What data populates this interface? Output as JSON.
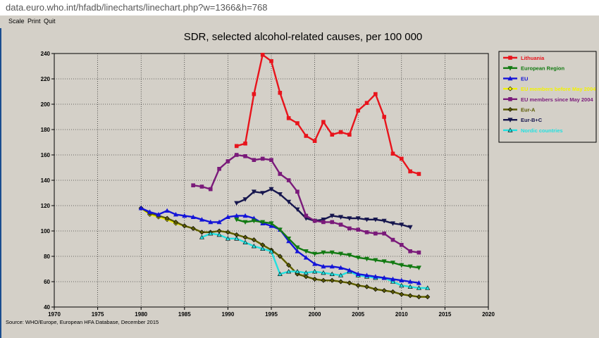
{
  "browser": {
    "url": "data.euro.who.int/hfadb/linecharts/linechart.php?w=1366&h=768"
  },
  "menu": {
    "items": [
      "Scale",
      "Print",
      "Quit"
    ]
  },
  "source": "Source: WHO/Europe, European HFA Database, December 2015",
  "chart_data": {
    "type": "line",
    "title": "SDR, selected alcohol-related causes, per 100 000",
    "xlim": [
      1970,
      2020
    ],
    "ylim": [
      40,
      240
    ],
    "xticks": [
      1970,
      1975,
      1980,
      1985,
      1990,
      1995,
      2000,
      2005,
      2010,
      2015,
      2020
    ],
    "yticks": [
      40,
      60,
      80,
      100,
      120,
      140,
      160,
      180,
      200,
      220,
      240
    ],
    "grid": true,
    "legend_position": "right",
    "series": [
      {
        "name": "Lithuania",
        "color": "#e8141c",
        "marker": "square",
        "x": [
          1991,
          1992,
          1993,
          1994,
          1995,
          1996,
          1997,
          1998,
          1999,
          2000,
          2001,
          2002,
          2003,
          2004,
          2005,
          2006,
          2007,
          2008,
          2009,
          2010,
          2011,
          2012
        ],
        "y": [
          167,
          169,
          208,
          239,
          234,
          209,
          189,
          185,
          175,
          171,
          186,
          176,
          178,
          176,
          195,
          201,
          208,
          190,
          161,
          157,
          147,
          145
        ]
      },
      {
        "name": "European Region",
        "color": "#127a12",
        "marker": "triangle-down",
        "x": [
          1991,
          1992,
          1993,
          1994,
          1995,
          1996,
          1997,
          1998,
          1999,
          2000,
          2001,
          2002,
          2003,
          2004,
          2005,
          2006,
          2007,
          2008,
          2009,
          2010,
          2011,
          2012
        ],
        "y": [
          109,
          107,
          108,
          107,
          106,
          101,
          94,
          87,
          84,
          82,
          83,
          83,
          82,
          81,
          79,
          78,
          77,
          76,
          75,
          73,
          72,
          71
        ]
      },
      {
        "name": "EU",
        "color": "#1414d8",
        "marker": "triangle-up",
        "x": [
          1980,
          1981,
          1982,
          1983,
          1984,
          1985,
          1986,
          1987,
          1988,
          1989,
          1990,
          1991,
          1992,
          1993,
          1994,
          1995,
          1996,
          1997,
          1998,
          1999,
          2000,
          2001,
          2002,
          2003,
          2004,
          2005,
          2006,
          2007,
          2008,
          2009,
          2010,
          2011,
          2012
        ],
        "y": [
          118,
          115,
          113,
          116,
          113,
          112,
          111,
          109,
          107,
          107,
          111,
          112,
          112,
          110,
          106,
          104,
          101,
          92,
          84,
          79,
          74,
          72,
          72,
          71,
          69,
          66,
          65,
          64,
          63,
          62,
          61,
          60,
          59
        ]
      },
      {
        "name": "EU members before May 2004",
        "color": "#f2f200",
        "marker": "diamond-open",
        "x": [
          1980,
          1981,
          1982,
          1983,
          1984,
          1985,
          1986,
          1987,
          1988,
          1989,
          1990,
          1991,
          1992,
          1993,
          1994,
          1995,
          1996,
          1997,
          1998,
          1999,
          2000,
          2001,
          2002,
          2003,
          2004,
          2005,
          2006,
          2007,
          2008,
          2009,
          2010,
          2011,
          2012,
          2013
        ],
        "y": [
          118,
          113,
          111,
          109,
          106,
          104,
          102,
          99,
          99,
          100,
          99,
          97,
          95,
          93,
          89,
          85,
          80,
          73,
          66,
          64,
          62,
          61,
          61,
          60,
          59,
          57,
          56,
          54,
          53,
          52,
          50,
          49,
          48,
          48
        ]
      },
      {
        "name": "EU members since May 2004",
        "color": "#7a1a7a",
        "marker": "square",
        "x": [
          1986,
          1987,
          1988,
          1989,
          1990,
          1991,
          1992,
          1993,
          1994,
          1995,
          1996,
          1997,
          1998,
          1999,
          2000,
          2001,
          2002,
          2003,
          2004,
          2005,
          2006,
          2007,
          2008,
          2009,
          2010,
          2011,
          2012
        ],
        "y": [
          136,
          135,
          133,
          149,
          155,
          160,
          159,
          156,
          157,
          156,
          145,
          140,
          131,
          112,
          108,
          107,
          107,
          105,
          102,
          101,
          99,
          98,
          98,
          93,
          89,
          84,
          83
        ]
      },
      {
        "name": "Eur-A",
        "color": "#5a5a00",
        "marker": "diamond",
        "x": [
          1980,
          1981,
          1982,
          1983,
          1984,
          1985,
          1986,
          1987,
          1988,
          1989,
          1990,
          1991,
          1992,
          1993,
          1994,
          1995,
          1996,
          1997,
          1998,
          1999,
          2000,
          2001,
          2002,
          2003,
          2004,
          2005,
          2006,
          2007,
          2008,
          2009,
          2010,
          2011,
          2012,
          2013
        ],
        "y": [
          118,
          114,
          112,
          110,
          107,
          104,
          102,
          99,
          99,
          100,
          99,
          97,
          95,
          93,
          89,
          85,
          80,
          73,
          66,
          64,
          62,
          61,
          61,
          60,
          59,
          57,
          56,
          54,
          53,
          52,
          50,
          49,
          48,
          48
        ]
      },
      {
        "name": "Eur-B+C",
        "color": "#16164e",
        "marker": "triangle-down",
        "x": [
          1991,
          1992,
          1993,
          1994,
          1995,
          1996,
          1997,
          1998,
          1999,
          2000,
          2001,
          2002,
          2003,
          2004,
          2005,
          2006,
          2007,
          2008,
          2009,
          2010,
          2011
        ],
        "y": [
          122,
          125,
          131,
          130,
          133,
          129,
          123,
          117,
          110,
          108,
          109,
          112,
          111,
          110,
          110,
          109,
          109,
          108,
          106,
          105,
          103
        ]
      },
      {
        "name": "Nordic countries",
        "color": "#22e0e0",
        "marker": "triangle-up-open",
        "x": [
          1987,
          1988,
          1989,
          1990,
          1991,
          1992,
          1993,
          1994,
          1995,
          1996,
          1997,
          1998,
          1999,
          2000,
          2001,
          2002,
          2003,
          2004,
          2005,
          2006,
          2007,
          2008,
          2009,
          2010,
          2011,
          2012,
          2013
        ],
        "y": [
          95,
          98,
          97,
          94,
          94,
          91,
          88,
          86,
          84,
          66,
          68,
          68,
          67,
          68,
          67,
          66,
          65,
          68,
          65,
          64,
          63,
          63,
          60,
          57,
          56,
          55,
          55
        ]
      }
    ]
  }
}
